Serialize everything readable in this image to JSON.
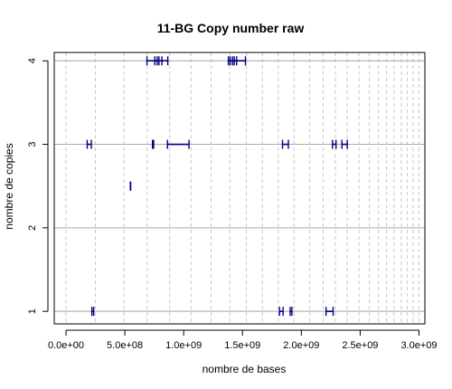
{
  "chart_data": {
    "type": "scatter",
    "title": "11-BG Copy number raw",
    "xlabel": "nombre de bases",
    "ylabel": "nombre de copies",
    "xlim": [
      -100000000.0,
      3050000000.0
    ],
    "ylim": [
      0.85,
      4.1
    ],
    "x_ticks": [
      {
        "value": 0,
        "label": "0.0e+00"
      },
      {
        "value": 500000000,
        "label": "5.0e+08"
      },
      {
        "value": 1000000000,
        "label": "1.0e+09"
      },
      {
        "value": 1500000000,
        "label": "1.5e+09"
      },
      {
        "value": 2000000000,
        "label": "2.0e+09"
      },
      {
        "value": 2500000000,
        "label": "2.5e+09"
      },
      {
        "value": 3000000000,
        "label": "3.0e+09"
      }
    ],
    "y_ticks": [
      {
        "value": 1,
        "label": "1"
      },
      {
        "value": 2,
        "label": "2"
      },
      {
        "value": 3,
        "label": "3"
      },
      {
        "value": 4,
        "label": "4"
      }
    ],
    "vertical_gridlines": [
      0,
      249000000,
      492000000,
      690000000,
      881000000,
      1062000000,
      1233000000,
      1392000000,
      1533000000,
      1669000000,
      1804000000,
      1938000000,
      2071000000,
      2186000000,
      2289000000,
      2390000000,
      2490000000,
      2578000000,
      2656000000,
      2725000000,
      2788000000,
      2850000000,
      2900000000,
      2950000000,
      3000000000
    ],
    "horizontal_gridlines": [
      1,
      2,
      3,
      4
    ],
    "grid": true,
    "color": "#000080",
    "segments": [
      {
        "y": 4,
        "x0": 688000000,
        "x1": 865000000
      },
      {
        "y": 4,
        "x0": 755000000,
        "x1": 775000000
      },
      {
        "y": 4,
        "x0": 790000000,
        "x1": 815000000
      },
      {
        "y": 4,
        "x0": 1380000000,
        "x1": 1525000000
      },
      {
        "y": 4,
        "x0": 1395000000,
        "x1": 1415000000
      },
      {
        "y": 4,
        "x0": 1430000000,
        "x1": 1450000000
      },
      {
        "y": 3,
        "x0": 180000000,
        "x1": 215000000
      },
      {
        "y": 3,
        "x0": 735000000,
        "x1": 745000000
      },
      {
        "y": 3,
        "x0": 862000000,
        "x1": 1045000000
      },
      {
        "y": 3,
        "x0": 1840000000,
        "x1": 1890000000
      },
      {
        "y": 3,
        "x0": 2265000000,
        "x1": 2295000000
      },
      {
        "y": 3,
        "x0": 2345000000,
        "x1": 2390000000
      },
      {
        "y": 2.5,
        "x0": 547000000,
        "x1": 550000000
      },
      {
        "y": 1,
        "x0": 220000000,
        "x1": 235000000
      },
      {
        "y": 1,
        "x0": 1815000000,
        "x1": 1845000000
      },
      {
        "y": 1,
        "x0": 1905000000,
        "x1": 1920000000
      },
      {
        "y": 1,
        "x0": 2210000000,
        "x1": 2270000000
      }
    ]
  }
}
